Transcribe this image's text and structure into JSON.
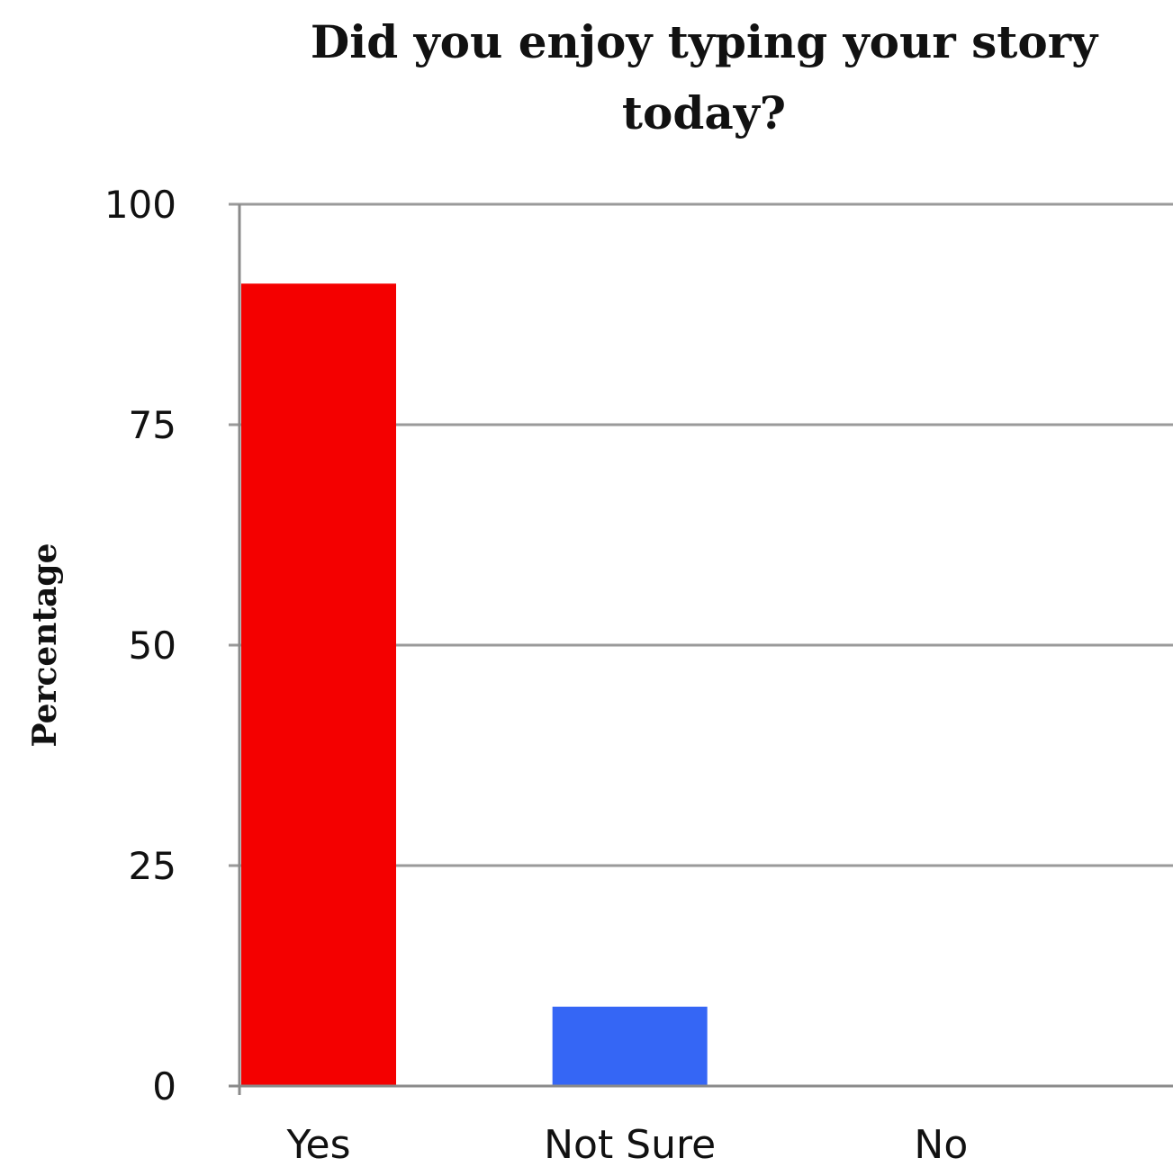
{
  "chart_data": {
    "type": "bar",
    "title_lines": [
      "Did you enjoy typing your story",
      "today?"
    ],
    "ylabel": "Percentage",
    "xlabel": "",
    "categories": [
      "Yes",
      "Not Sure",
      "No"
    ],
    "values": [
      91,
      9,
      0
    ],
    "colors": [
      "#f40000",
      "#3566f5",
      "#888888"
    ],
    "ylim": [
      0,
      100
    ],
    "yticks": [
      0,
      25,
      50,
      75,
      100
    ],
    "grid": true,
    "legend": "none"
  }
}
